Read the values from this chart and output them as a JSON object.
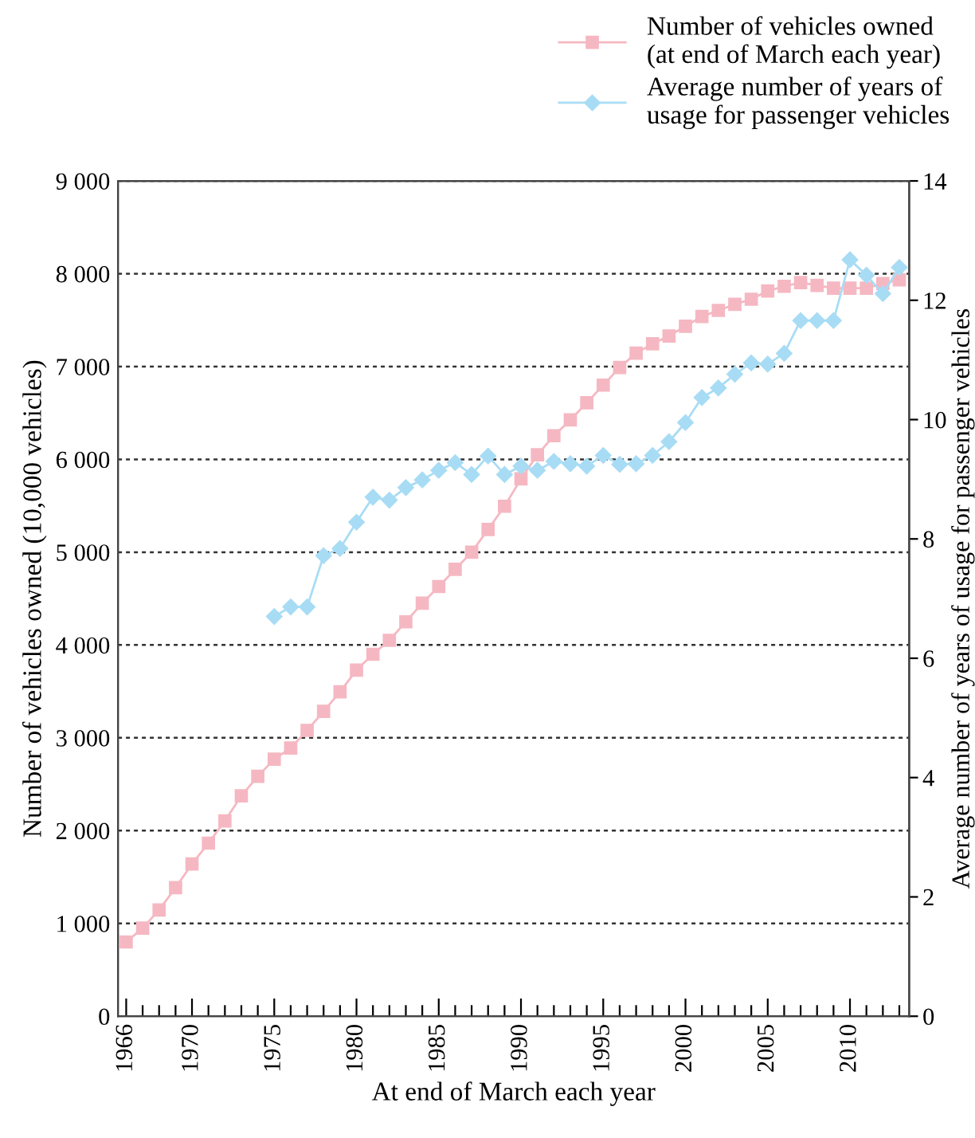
{
  "chart_data": {
    "type": "line",
    "xlabel": "At end of March each year",
    "ylabel": "Number of vehicles owned (10,000 vehicles)",
    "y2label": "Average number of years of usage for passenger vehicles",
    "xlim": [
      1965.5,
      2013.6
    ],
    "xticks": [
      1966,
      {
        "value": 1967,
        "label": null
      },
      {
        "value": 1968,
        "label": null
      },
      {
        "value": 1969,
        "label": null
      },
      1970,
      {
        "value": 1971,
        "label": null
      },
      {
        "value": 1972,
        "label": null
      },
      {
        "value": 1973,
        "label": null
      },
      {
        "value": 1974,
        "label": null
      },
      1975,
      {
        "value": 1976,
        "label": null
      },
      {
        "value": 1977,
        "label": null
      },
      {
        "value": 1978,
        "label": null
      },
      {
        "value": 1979,
        "label": null
      },
      1980,
      {
        "value": 1981,
        "label": null
      },
      {
        "value": 1982,
        "label": null
      },
      {
        "value": 1983,
        "label": null
      },
      {
        "value": 1984,
        "label": null
      },
      1985,
      {
        "value": 1986,
        "label": null
      },
      {
        "value": 1987,
        "label": null
      },
      {
        "value": 1988,
        "label": null
      },
      {
        "value": 1989,
        "label": null
      },
      1990,
      {
        "value": 1991,
        "label": null
      },
      {
        "value": 1992,
        "label": null
      },
      {
        "value": 1993,
        "label": null
      },
      {
        "value": 1994,
        "label": null
      },
      1995,
      {
        "value": 1996,
        "label": null
      },
      {
        "value": 1997,
        "label": null
      },
      {
        "value": 1998,
        "label": null
      },
      {
        "value": 1999,
        "label": null
      },
      2000,
      {
        "value": 2001,
        "label": null
      },
      {
        "value": 2002,
        "label": null
      },
      {
        "value": 2003,
        "label": null
      },
      {
        "value": 2004,
        "label": null
      },
      2005,
      {
        "value": 2006,
        "label": null
      },
      {
        "value": 2007,
        "label": null
      },
      {
        "value": 2008,
        "label": null
      },
      {
        "value": 2009,
        "label": null
      },
      2010,
      {
        "value": 2011,
        "label": null
      },
      {
        "value": 2012,
        "label": null
      },
      {
        "value": 2013,
        "label": null
      }
    ],
    "ylim": [
      0,
      9000
    ],
    "yticks": [
      0,
      {
        "value": 1000,
        "label": "1 000"
      },
      {
        "value": 2000,
        "label": "2 000"
      },
      {
        "value": 3000,
        "label": "3 000"
      },
      {
        "value": 4000,
        "label": "4 000"
      },
      {
        "value": 5000,
        "label": "5 000"
      },
      {
        "value": 6000,
        "label": "6 000"
      },
      {
        "value": 7000,
        "label": "7 000"
      },
      {
        "value": 8000,
        "label": "8 000"
      },
      {
        "value": 9000,
        "label": "9 000"
      }
    ],
    "y2lim": [
      0,
      14
    ],
    "y2ticks": [
      0,
      2,
      4,
      6,
      8,
      10,
      12,
      14
    ],
    "grid": "y",
    "legend": "top right",
    "line_style": "solid",
    "series": [
      {
        "name": "Number of vehicles owned\n(at end of March each year)",
        "color": "#f5b8c2",
        "marker": "square",
        "x": [
          1966,
          1967,
          1968,
          1969,
          1970,
          1971,
          1972,
          1973,
          1974,
          1975,
          1976,
          1977,
          1978,
          1979,
          1980,
          1981,
          1982,
          1983,
          1984,
          1985,
          1986,
          1987,
          1988,
          1989,
          1990,
          1991,
          1992,
          1993,
          1994,
          1995,
          1996,
          1997,
          1998,
          1999,
          2000,
          2001,
          2002,
          2003,
          2004,
          2005,
          2006,
          2007,
          2008,
          2009,
          2010,
          2011,
          2012,
          2013
        ],
        "values": [
          800,
          950,
          1145,
          1385,
          1640,
          1865,
          2105,
          2375,
          2585,
          2770,
          2890,
          3080,
          3285,
          3495,
          3730,
          3900,
          4050,
          4250,
          4450,
          4630,
          4815,
          5000,
          5245,
          5495,
          5790,
          6050,
          6255,
          6425,
          6610,
          6800,
          6990,
          7145,
          7245,
          7330,
          7435,
          7540,
          7605,
          7670,
          7725,
          7815,
          7865,
          7905,
          7875,
          7845,
          7845,
          7845,
          7895,
          7935
        ]
      },
      {
        "name": "Average number of years of\nusage for passenger vehicles",
        "color": "#a8dcf5",
        "marker": "diamond",
        "axis": "y2",
        "x": [
          1975,
          1976,
          1977,
          1978,
          1979,
          1980,
          1981,
          1982,
          1983,
          1984,
          1985,
          1986,
          1987,
          1988,
          1989,
          1990,
          1991,
          1992,
          1993,
          1994,
          1995,
          1996,
          1997,
          1998,
          1999,
          2000,
          2001,
          2002,
          2003,
          2004,
          2005,
          2006,
          2007,
          2008,
          2009,
          2010,
          2011,
          2012,
          2013
        ],
        "values": [
          6.7,
          6.86,
          6.86,
          7.72,
          7.84,
          8.28,
          8.7,
          8.65,
          8.86,
          8.99,
          9.15,
          9.28,
          9.08,
          9.39,
          9.08,
          9.22,
          9.15,
          9.3,
          9.26,
          9.22,
          9.4,
          9.25,
          9.26,
          9.4,
          9.63,
          9.95,
          10.37,
          10.53,
          10.76,
          10.95,
          10.93,
          11.11,
          11.66,
          11.66,
          11.66,
          12.68,
          12.42,
          12.11,
          12.55
        ]
      }
    ]
  }
}
